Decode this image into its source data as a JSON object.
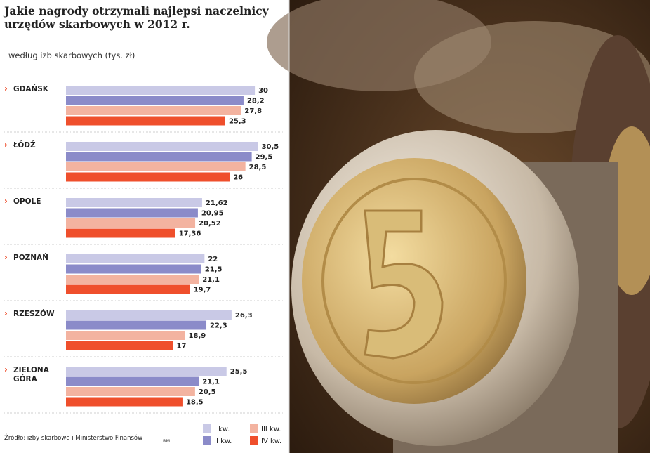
{
  "chart_data": {
    "type": "bar",
    "orientation": "horizontal",
    "title": "Jakie nagrody otrzymali najlepsi naczelnicy urzędów skarbowych w 2012 r.",
    "subtitle": "według izb skarbowych (tys. zł)",
    "categories": [
      "GDAŃSK",
      "ŁÓDŹ",
      "OPOLE",
      "POZNAŃ",
      "RZESZÓW",
      "ZIELONA GÓRA"
    ],
    "series": [
      {
        "name": "I kw.",
        "color": "#c9c9e6",
        "values": [
          30,
          30.5,
          21.62,
          22,
          26.3,
          25.5
        ],
        "value_labels": [
          "30",
          "30,5",
          "21,62",
          "22",
          "26,3",
          "25,5"
        ]
      },
      {
        "name": "II kw.",
        "color": "#8b8bc9",
        "values": [
          28.2,
          29.5,
          20.95,
          21.5,
          22.3,
          21.1
        ],
        "value_labels": [
          "28,2",
          "29,5",
          "20,95",
          "21,5",
          "22,3",
          "21,1"
        ]
      },
      {
        "name": "III kw.",
        "color": "#f3b3a0",
        "values": [
          27.8,
          28.5,
          20.52,
          21.1,
          18.9,
          20.5
        ],
        "value_labels": [
          "27,8",
          "28,5",
          "20,52",
          "21,1",
          "18,9",
          "20,5"
        ]
      },
      {
        "name": "IV kw.",
        "color": "#ef4f2c",
        "values": [
          25.3,
          26,
          17.36,
          19.7,
          17,
          18.5
        ],
        "value_labels": [
          "25,3",
          "26",
          "17,36",
          "19,7",
          "17",
          "18,5"
        ]
      }
    ],
    "source": "Źródło: izby skarbowe i Ministerstwo Finansów",
    "author": "RM"
  }
}
